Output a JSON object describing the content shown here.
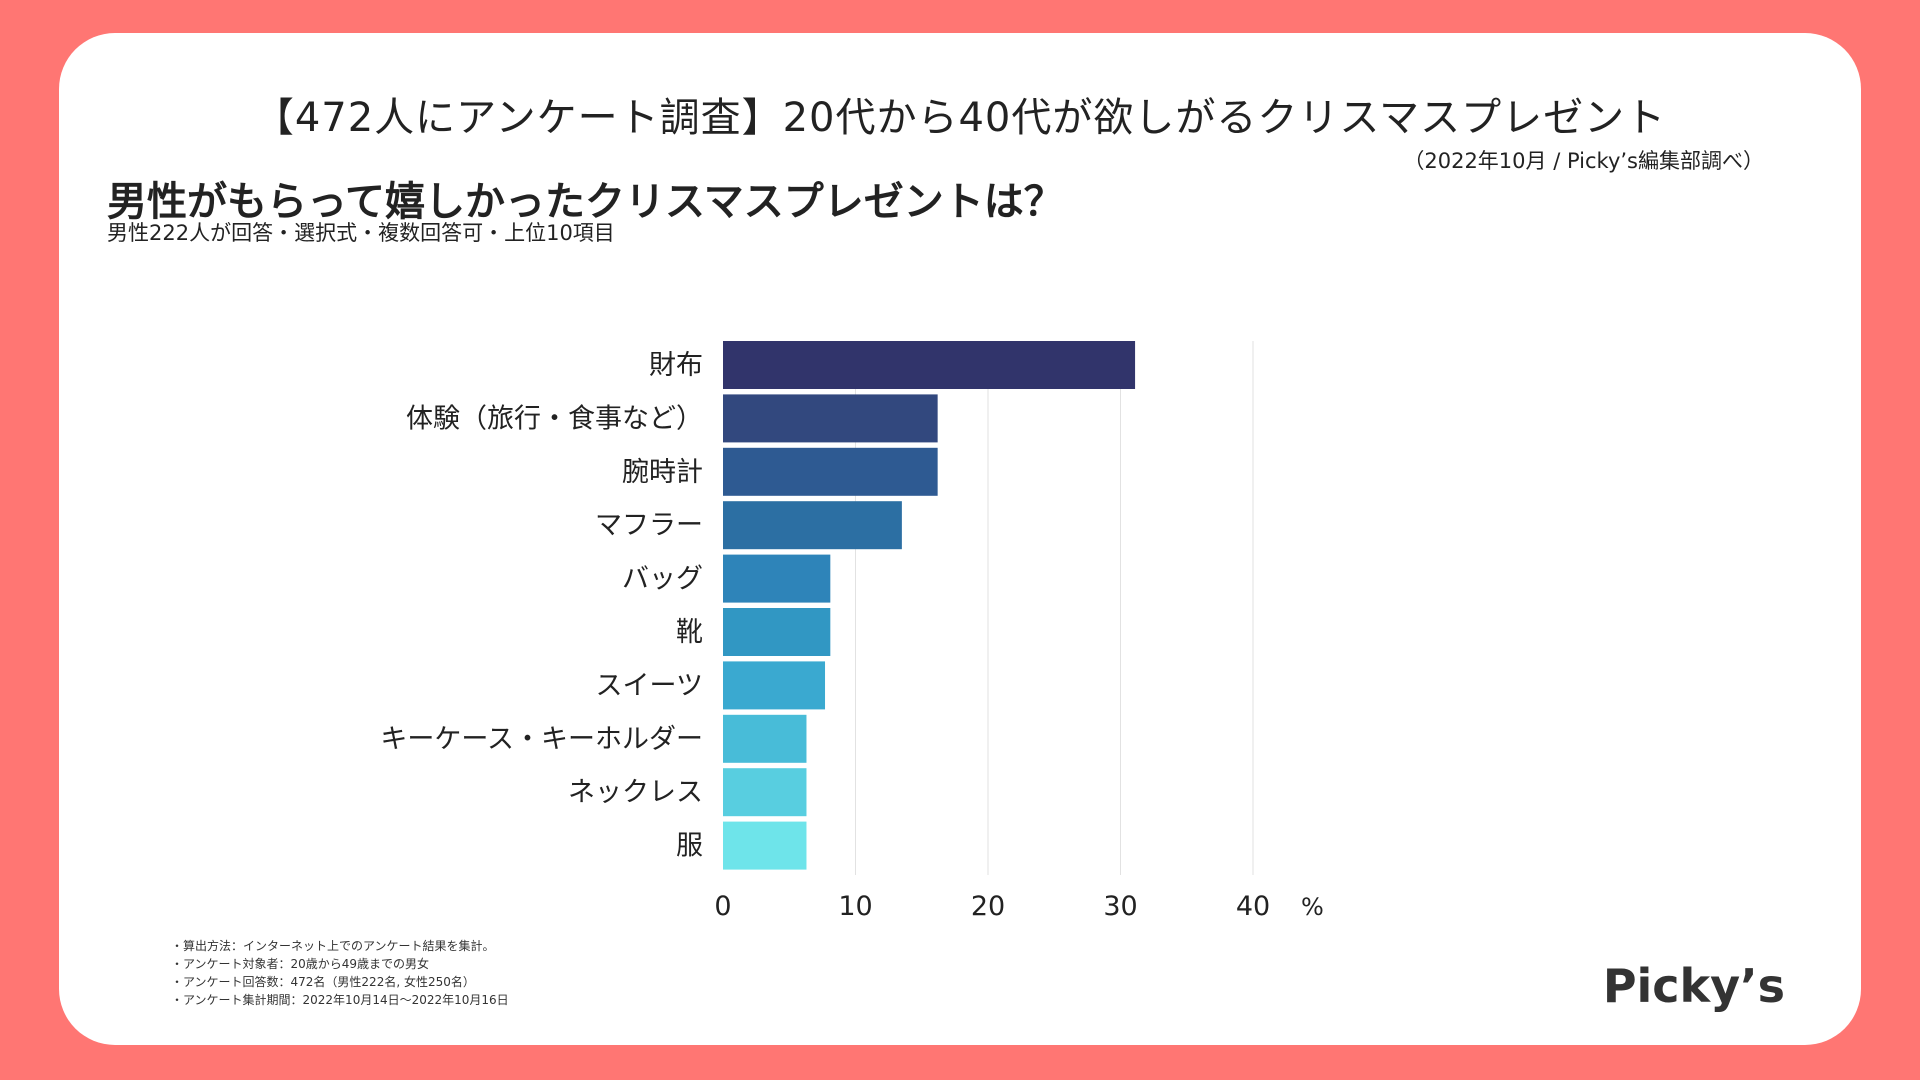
{
  "header": {
    "title": "【472人にアンケート調査】20代から40代が欲しがるクリスマスプレゼント",
    "source": "（2022年10月 / Picky’s編集部調べ）",
    "question": "男性がもらって嬉しかったクリスマスプレゼントは？",
    "subtitle": "男性222人が回答・選択式・複数回答可・上位10項目"
  },
  "notes": [
    "・算出方法：インターネット上でのアンケート結果を集計。",
    "・アンケート対象者：20歳から49歳までの男女",
    "・アンケート回答数：472名（男性222名, 女性250名）",
    "・アンケート集計期間：2022年10月14日〜2022年10月16日"
  ],
  "logo": "Picky’s",
  "chart_data": {
    "type": "bar",
    "orientation": "horizontal",
    "categories": [
      "財布",
      "体験（旅行・食事など）",
      "腕時計",
      "マフラー",
      "バッグ",
      "靴",
      "スイーツ",
      "キーケース・キーホルダー",
      "ネックレス",
      "服"
    ],
    "values": [
      31.1,
      16.2,
      16.2,
      13.5,
      8.1,
      8.1,
      7.7,
      6.3,
      6.3,
      6.3
    ],
    "colors": [
      "#31346B",
      "#32487E",
      "#2E5A92",
      "#2C6FA3",
      "#2E84B9",
      "#3197C3",
      "#3AA9D0",
      "#48BCD8",
      "#58CEE0",
      "#6EE4EA"
    ],
    "xlim": [
      0,
      40
    ],
    "xticks": [
      0,
      10,
      20,
      30,
      40
    ],
    "unit": "%",
    "grid": true
  }
}
